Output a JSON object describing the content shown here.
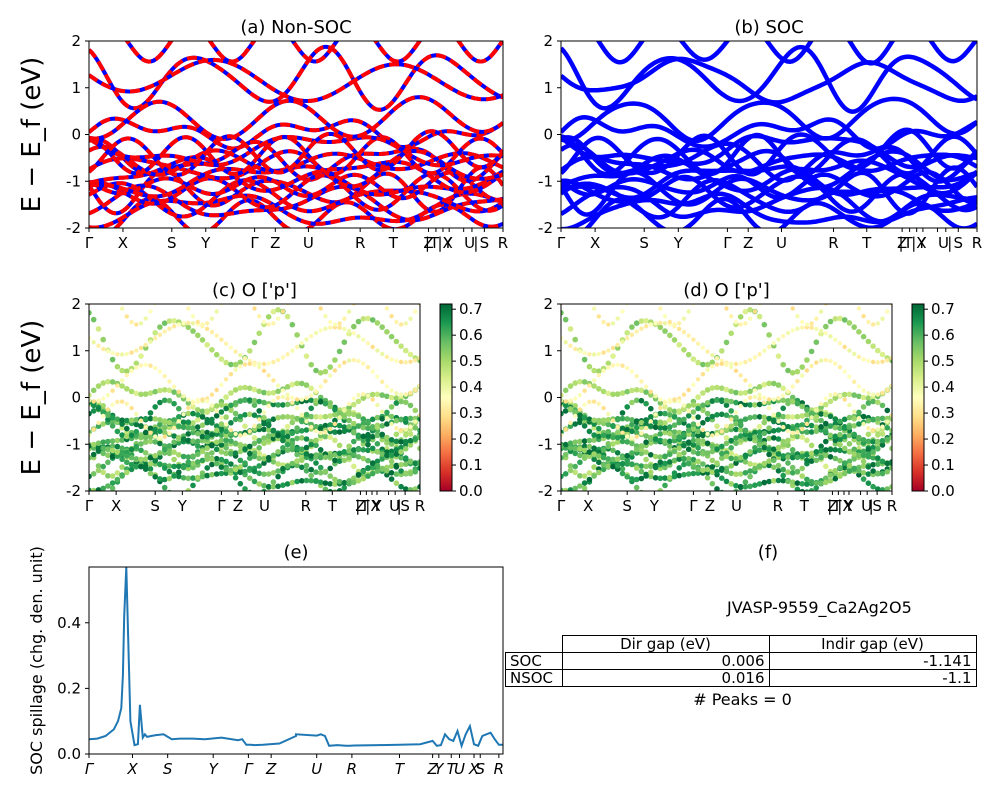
{
  "figure": {
    "kpath_labels": [
      "Γ",
      "X",
      "S",
      "Y",
      "Γ",
      "Z",
      "U",
      "R",
      "T",
      "Z|Y",
      "T|U",
      "X|S",
      "R"
    ],
    "ylabel": "E − E_f (eV)"
  },
  "colors": {
    "nonsoc_red": "#ff0000",
    "nonsoc_blue": "#0000ff",
    "soc_blue": "#0000ff",
    "spillage_line": "#1f77b4",
    "cmap": [
      "#a50026",
      "#d73027",
      "#f46d43",
      "#fdae61",
      "#fee08b",
      "#ffffbf",
      "#d9ef8b",
      "#a6d96a",
      "#66bd63",
      "#1a9850",
      "#006837"
    ]
  },
  "chart_data": [
    {
      "id": "a",
      "type": "line",
      "title": "(a) Non-SOC",
      "ylabel": "E − E_f (eV)",
      "ylim": [
        -2,
        2
      ],
      "yticks": [
        -2,
        -1,
        0,
        1,
        2
      ],
      "xticks": [
        "Γ",
        "X",
        "S",
        "Y",
        "Γ",
        "Z",
        "U",
        "R",
        "T",
        "Z",
        "|T",
        "Y",
        "|X",
        "U",
        "|",
        "S",
        "R"
      ],
      "style": "red/blue dashed band lines"
    },
    {
      "id": "b",
      "type": "line",
      "title": "(b) SOC",
      "ylim": [
        -2,
        2
      ],
      "yticks": [
        -2,
        -1,
        0,
        1,
        2
      ],
      "xticks": [
        "Γ",
        "X",
        "S",
        "Y",
        "Γ",
        "Z",
        "U",
        "R",
        "T",
        "Z",
        "|T",
        "Y",
        "|X",
        "U",
        "|",
        "S",
        "R"
      ],
      "style": "blue band lines"
    },
    {
      "id": "c",
      "type": "scatter",
      "title": "(c)  O ['p']",
      "ylabel": "E − E_f (eV)",
      "ylim": [
        -2,
        2
      ],
      "yticks": [
        -2,
        -1,
        0,
        1,
        2
      ],
      "xticks": [
        "Γ",
        "X",
        "S",
        "Y",
        "Γ",
        "Z",
        "U",
        "R",
        "T",
        "Z",
        "|T",
        "Y",
        "|X",
        "U",
        "|",
        "S",
        "R"
      ],
      "colorbar": {
        "min": 0.0,
        "max": 0.72,
        "ticks": [
          "0.0",
          "0.1",
          "0.2",
          "0.3",
          "0.4",
          "0.5",
          "0.6",
          "0.7"
        ],
        "cmap": "RdYlGn"
      }
    },
    {
      "id": "d",
      "type": "scatter",
      "title": "(d) O ['p']",
      "ylim": [
        -2,
        2
      ],
      "yticks": [
        -2,
        -1,
        0,
        1,
        2
      ],
      "xticks": [
        "Γ",
        "X",
        "S",
        "Y",
        "Γ",
        "Z",
        "U",
        "R",
        "T",
        "Z",
        "|T",
        "Y",
        "|X",
        "U",
        "|",
        "S",
        "R"
      ],
      "colorbar": {
        "min": 0.0,
        "max": 0.72,
        "ticks": [
          "0.0",
          "0.1",
          "0.2",
          "0.3",
          "0.4",
          "0.5",
          "0.6",
          "0.7"
        ],
        "cmap": "RdYlGn"
      }
    },
    {
      "id": "e",
      "type": "line",
      "title": "(e)",
      "ylabel": "SOC spillage (chg. den. unit)",
      "ylim": [
        0,
        0.57
      ],
      "yticks": [
        "0.0",
        "0.2",
        "0.4"
      ],
      "xticks": [
        "Γ",
        "X",
        "S",
        "Y",
        "Γ",
        "Z",
        "U",
        "R",
        "T",
        "Z",
        "Y",
        "T",
        "U",
        "X",
        "S",
        "R"
      ],
      "x": [
        0,
        0.02,
        0.04,
        0.06,
        0.07,
        0.078,
        0.082,
        0.085,
        0.09,
        0.1,
        0.11,
        0.118,
        0.123,
        0.13,
        0.135,
        0.14,
        0.15,
        0.16,
        0.18,
        0.2,
        0.22,
        0.25,
        0.28,
        0.32,
        0.36,
        0.37,
        0.38,
        0.39,
        0.4,
        0.42,
        0.46,
        0.5,
        0.5,
        0.55,
        0.56,
        0.57,
        0.58,
        0.6,
        0.62,
        0.63,
        0.64,
        0.7,
        0.75,
        0.8,
        0.83,
        0.84,
        0.85,
        0.86,
        0.87,
        0.88,
        0.89,
        0.9,
        0.91,
        0.92,
        0.93,
        0.94,
        0.95,
        0.96,
        0.97,
        0.98,
        0.99,
        1.0
      ],
      "y": [
        0.045,
        0.047,
        0.055,
        0.075,
        0.1,
        0.14,
        0.24,
        0.42,
        0.57,
        0.1,
        0.027,
        0.03,
        0.15,
        0.05,
        0.06,
        0.052,
        0.055,
        0.057,
        0.06,
        0.045,
        0.047,
        0.047,
        0.045,
        0.05,
        0.042,
        0.045,
        0.028,
        0.028,
        0.027,
        0.028,
        0.032,
        0.055,
        0.06,
        0.056,
        0.06,
        0.055,
        0.025,
        0.027,
        0.025,
        0.025,
        0.026,
        0.027,
        0.028,
        0.03,
        0.04,
        0.025,
        0.027,
        0.06,
        0.045,
        0.04,
        0.07,
        0.025,
        0.06,
        0.085,
        0.03,
        0.025,
        0.055,
        0.06,
        0.065,
        0.045,
        0.028,
        0.028
      ]
    },
    {
      "id": "f",
      "type": "table",
      "title": "(f)",
      "subtitle": "JVASP-9559_Ca2Ag2O5",
      "columns": [
        "",
        "Dir gap (eV)",
        "Indir gap (eV)"
      ],
      "rows": [
        [
          "SOC",
          "0.006",
          "-1.141"
        ],
        [
          "NSOC",
          "0.016",
          "-1.1"
        ]
      ],
      "footer": "# Peaks = 0"
    }
  ]
}
